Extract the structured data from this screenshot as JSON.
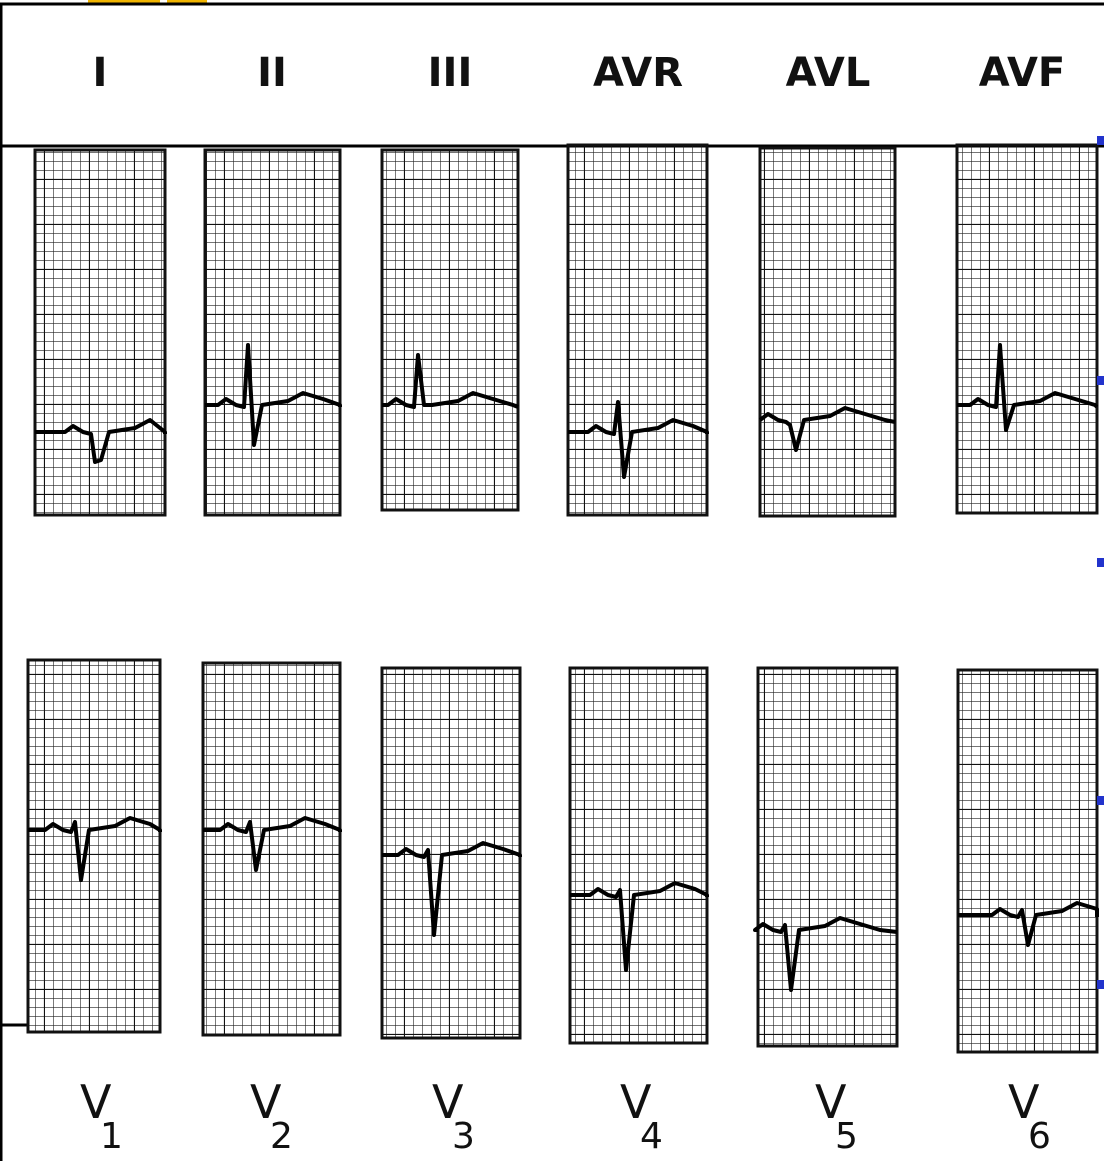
{
  "top_leads": [
    "I",
    "II",
    "III",
    "AVR",
    "AVL",
    "AVF"
  ],
  "bottom_leads": [
    {
      "name": "V",
      "subscript": "1"
    },
    {
      "name": "V",
      "subscript": "2"
    },
    {
      "name": "V",
      "subscript": "3"
    },
    {
      "name": "V",
      "subscript": "4"
    },
    {
      "name": "V",
      "subscript": "5"
    },
    {
      "name": "V",
      "subscript": "6"
    }
  ]
}
